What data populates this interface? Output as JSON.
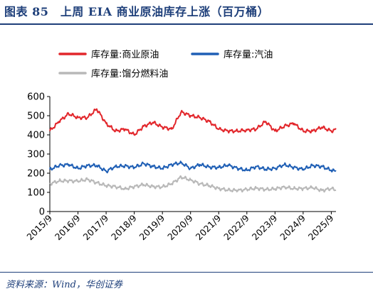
{
  "figure": {
    "title": "图表 85　上周 EIA 商业原油库存上涨（百万桶）",
    "source": "资料来源：Wind，华创证券"
  },
  "colors": {
    "commercial_crude": "#e2262b",
    "gasoline": "#1f5fb5",
    "distillate": "#b8b8b8",
    "accent": "#1e3f7a"
  },
  "chart_data": {
    "type": "line",
    "title": "",
    "xlabel": "",
    "ylabel": "",
    "ylim": [
      0,
      600
    ],
    "yticks": [
      0,
      100,
      200,
      300,
      400,
      500,
      600
    ],
    "xlim": [
      "2015-09",
      "2025-11"
    ],
    "xticks": [
      "2015/9",
      "2016/9",
      "2017/9",
      "2018/9",
      "2019/9",
      "2020/9",
      "2021/9",
      "2022/9",
      "2023/9",
      "2024/9",
      "2025/9"
    ],
    "grid": false,
    "legend_position": "top",
    "x": [
      "2015-09",
      "2016-01",
      "2016-05",
      "2016-09",
      "2017-01",
      "2017-05",
      "2017-09",
      "2018-01",
      "2018-05",
      "2018-09",
      "2019-01",
      "2019-05",
      "2019-09",
      "2020-01",
      "2020-05",
      "2020-09",
      "2021-01",
      "2021-05",
      "2021-09",
      "2022-01",
      "2022-05",
      "2022-09",
      "2023-01",
      "2023-05",
      "2023-09",
      "2024-01",
      "2024-05",
      "2024-09",
      "2025-01",
      "2025-05",
      "2025-09",
      "2025-11"
    ],
    "series": [
      {
        "name": "库存量:商业原油",
        "color": "#e2262b",
        "values": [
          420,
          470,
          510,
          490,
          490,
          535,
          460,
          420,
          430,
          400,
          445,
          465,
          440,
          430,
          520,
          500,
          490,
          470,
          430,
          420,
          420,
          425,
          430,
          470,
          420,
          445,
          460,
          420,
          420,
          440,
          420,
          428
        ]
      },
      {
        "name": "库存量:汽油",
        "color": "#1f5fb5",
        "values": [
          220,
          240,
          245,
          225,
          240,
          240,
          210,
          235,
          238,
          230,
          250,
          235,
          225,
          245,
          255,
          225,
          245,
          232,
          230,
          242,
          225,
          215,
          235,
          220,
          225,
          245,
          230,
          220,
          240,
          235,
          215,
          210
        ]
      },
      {
        "name": "库存量:馏分燃料油",
        "color": "#b8b8b8",
        "values": [
          145,
          160,
          160,
          158,
          168,
          150,
          135,
          130,
          118,
          130,
          140,
          130,
          128,
          145,
          180,
          165,
          145,
          135,
          120,
          112,
          110,
          115,
          122,
          115,
          118,
          128,
          120,
          120,
          125,
          110,
          120,
          112
        ]
      }
    ]
  }
}
